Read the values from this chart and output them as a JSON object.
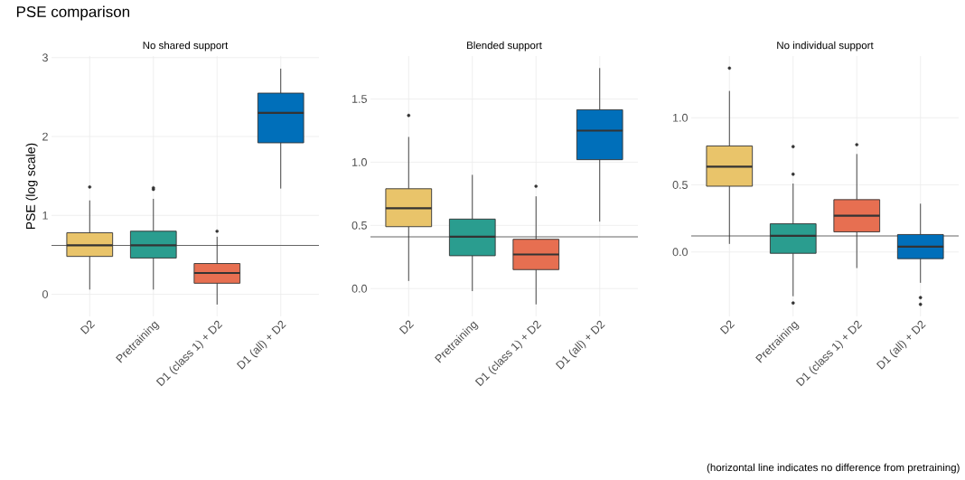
{
  "chart_data": [
    {
      "type": "box",
      "title": "PSE comparison",
      "subtitle": "No shared support",
      "ylabel": "PSE (log scale)",
      "categories": [
        "D2",
        "Pretraining",
        "D1 (class 1) + D2",
        "D1 (all) + D2"
      ],
      "colors": [
        "#e9c46a",
        "#2a9d8f",
        "#e76f51",
        "#006fba"
      ],
      "boxes": [
        {
          "low": 0.06,
          "q1": 0.48,
          "median": 0.62,
          "q3": 0.78,
          "high": 1.19,
          "outliers": [
            1.36
          ]
        },
        {
          "low": 0.06,
          "q1": 0.46,
          "median": 0.62,
          "q3": 0.8,
          "high": 1.21,
          "outliers": [
            1.33,
            1.35
          ]
        },
        {
          "low": -0.13,
          "q1": 0.14,
          "median": 0.27,
          "q3": 0.39,
          "high": 0.73,
          "outliers": [
            0.8
          ]
        },
        {
          "low": 1.34,
          "q1": 1.92,
          "median": 2.3,
          "q3": 2.55,
          "high": 2.86
        }
      ],
      "ylim": [
        -0.28,
        3.02
      ],
      "yticks": [
        0,
        1,
        2,
        3
      ],
      "grid": true,
      "ref_lines": [
        {
          "axis": "y",
          "value": 0.62,
          "color": "#666666"
        }
      ]
    },
    {
      "type": "box",
      "subtitle": "Blended support",
      "categories": [
        "D2",
        "Pretraining",
        "D1 (class 1) + D2",
        "D1 (all) + D2"
      ],
      "colors": [
        "#e9c46a",
        "#2a9d8f",
        "#e76f51",
        "#006fba"
      ],
      "boxes": [
        {
          "low": 0.06,
          "q1": 0.49,
          "median": 0.635,
          "q3": 0.79,
          "high": 1.2,
          "outliers": [
            1.37
          ]
        },
        {
          "low": -0.02,
          "q1": 0.26,
          "median": 0.41,
          "q3": 0.55,
          "high": 0.9
        },
        {
          "low": -0.125,
          "q1": 0.15,
          "median": 0.27,
          "q3": 0.39,
          "high": 0.73,
          "outliers": [
            0.81
          ]
        },
        {
          "low": 0.53,
          "q1": 1.02,
          "median": 1.25,
          "q3": 1.415,
          "high": 1.745
        }
      ],
      "ylim": [
        -0.22,
        1.84
      ],
      "yticks": [
        {
          "value": 0,
          "label": "0.0"
        },
        {
          "value": 0.5,
          "label": "0.5"
        },
        {
          "value": 1,
          "label": "1.0"
        },
        {
          "value": 1.5,
          "label": "1.5"
        }
      ],
      "grid": true,
      "ref_lines": [
        {
          "axis": "y",
          "value": 0.41,
          "color": "#666666"
        }
      ]
    },
    {
      "type": "box",
      "subtitle": "No individual support",
      "categories": [
        "D2",
        "Pretraining",
        "D1 (class 1) + D2",
        "D1 (all) + D2"
      ],
      "colors": [
        "#e9c46a",
        "#2a9d8f",
        "#e76f51",
        "#006fba"
      ],
      "boxes": [
        {
          "low": 0.06,
          "q1": 0.49,
          "median": 0.635,
          "q3": 0.79,
          "high": 1.2,
          "outliers": [
            1.37
          ]
        },
        {
          "low": -0.33,
          "q1": -0.01,
          "median": 0.12,
          "q3": 0.21,
          "high": 0.51,
          "outliers": [
            0.785,
            0.58,
            -0.38
          ]
        },
        {
          "low": -0.12,
          "q1": 0.15,
          "median": 0.27,
          "q3": 0.39,
          "high": 0.73,
          "outliers": [
            0.8
          ]
        },
        {
          "low": -0.23,
          "q1": -0.05,
          "median": 0.04,
          "q3": 0.13,
          "high": 0.36,
          "outliers": [
            -0.34,
            -0.39
          ]
        }
      ],
      "ylim": [
        -0.48,
        1.46
      ],
      "yticks": [
        {
          "value": 0,
          "label": "0.0"
        },
        {
          "value": 0.5,
          "label": "0.5"
        },
        {
          "value": 1,
          "label": "1.0"
        }
      ],
      "grid": true,
      "ref_lines": [
        {
          "axis": "y",
          "value": 0.12,
          "color": "#666666"
        }
      ],
      "annotations": [
        "(horizontal line indicates no difference from pretraining)"
      ]
    }
  ]
}
